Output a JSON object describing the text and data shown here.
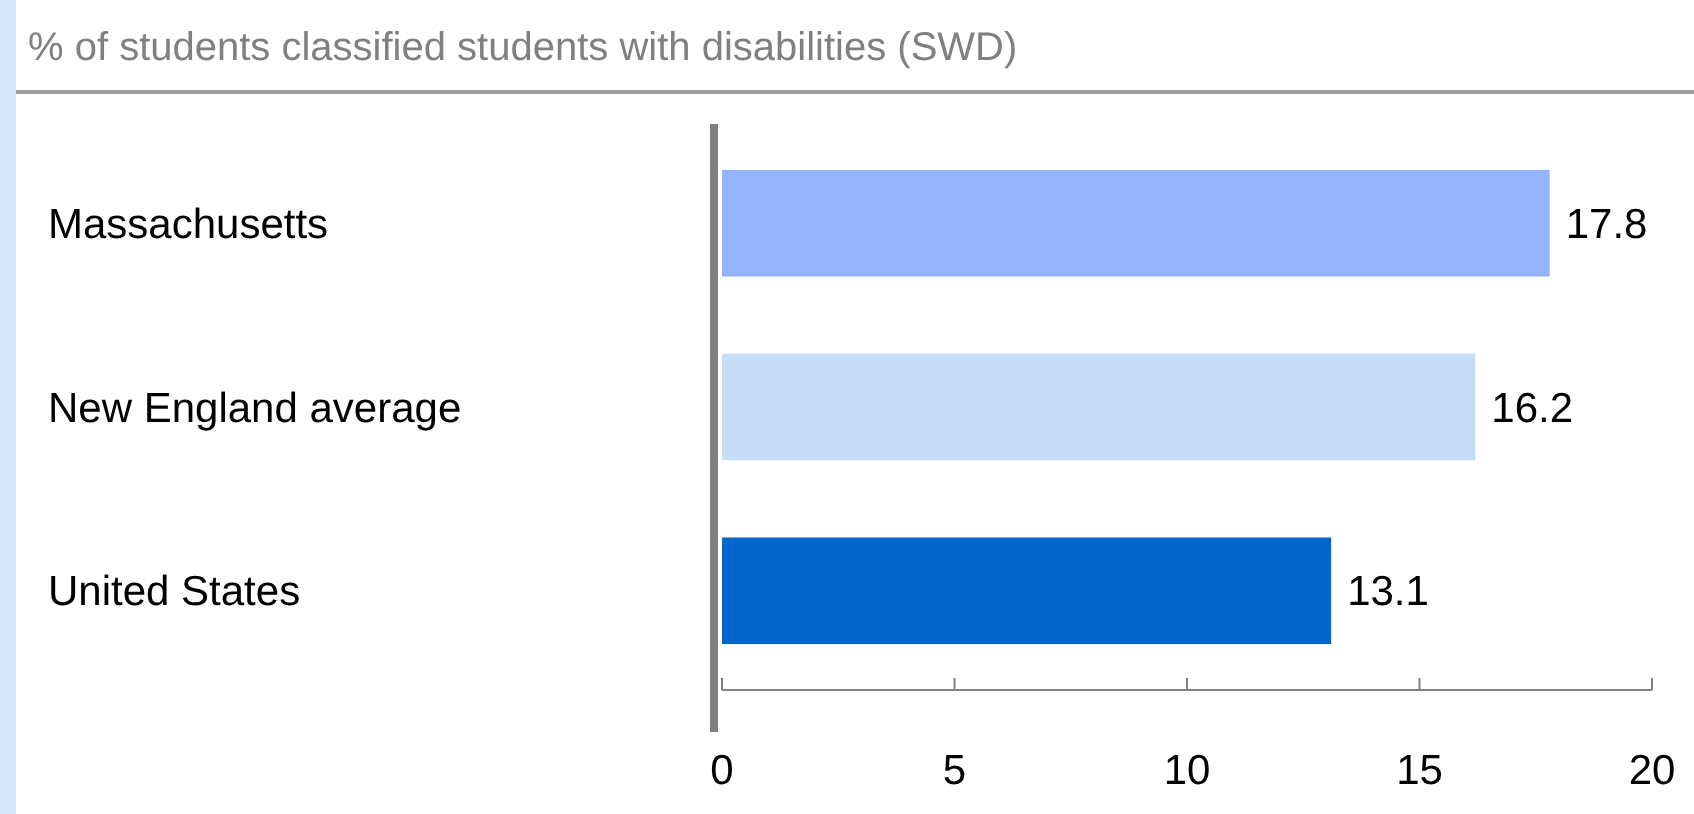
{
  "chart_data": {
    "type": "bar",
    "orientation": "horizontal",
    "title": "% of students classified students with disabilities (SWD)",
    "categories": [
      "Massachusetts",
      "New England average",
      "United States"
    ],
    "values": [
      17.8,
      16.2,
      13.1
    ],
    "colors": [
      "#93b3fb",
      "#c6ddf7",
      "#0066cc"
    ],
    "xlim": [
      0,
      20
    ],
    "xticks": [
      0,
      5,
      10,
      15,
      20
    ],
    "data_labels": true,
    "grid": false
  }
}
